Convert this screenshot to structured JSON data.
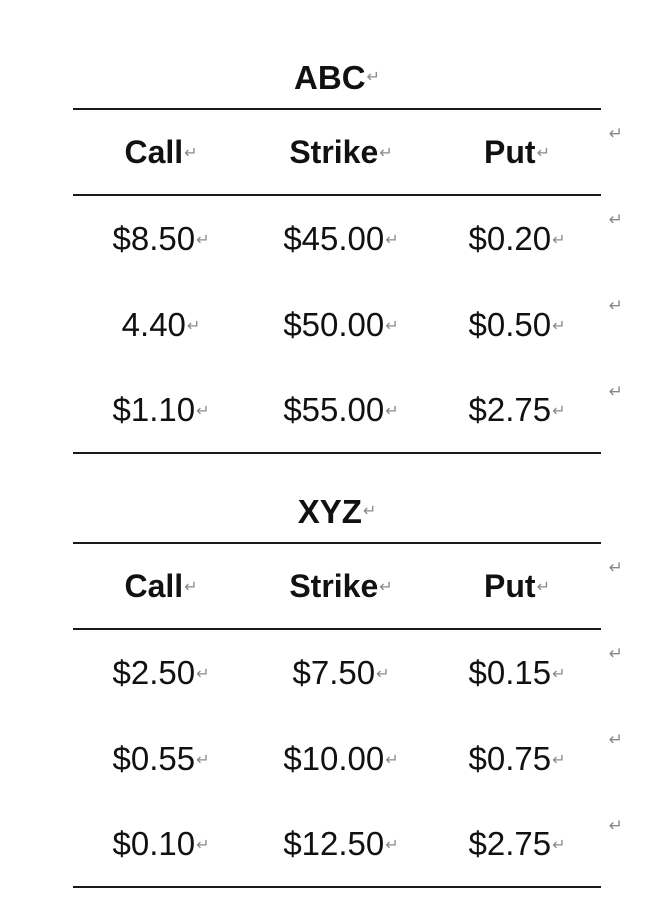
{
  "paragraph_mark": "↵",
  "tables": [
    {
      "title": "ABC",
      "headers": [
        "Call",
        "Strike",
        "Put"
      ],
      "rows": [
        [
          "$8.50",
          "$45.00",
          "$0.20"
        ],
        [
          "4.40",
          "$50.00",
          "$0.50"
        ],
        [
          "$1.10",
          "$55.00",
          "$2.75"
        ]
      ]
    },
    {
      "title": "XYZ",
      "headers": [
        "Call",
        "Strike",
        "Put"
      ],
      "rows": [
        [
          "$2.50",
          "$7.50",
          "$0.15"
        ],
        [
          "$0.55",
          "$10.00",
          "$0.75"
        ],
        [
          "$0.10",
          "$12.50",
          "$2.75"
        ]
      ]
    }
  ]
}
